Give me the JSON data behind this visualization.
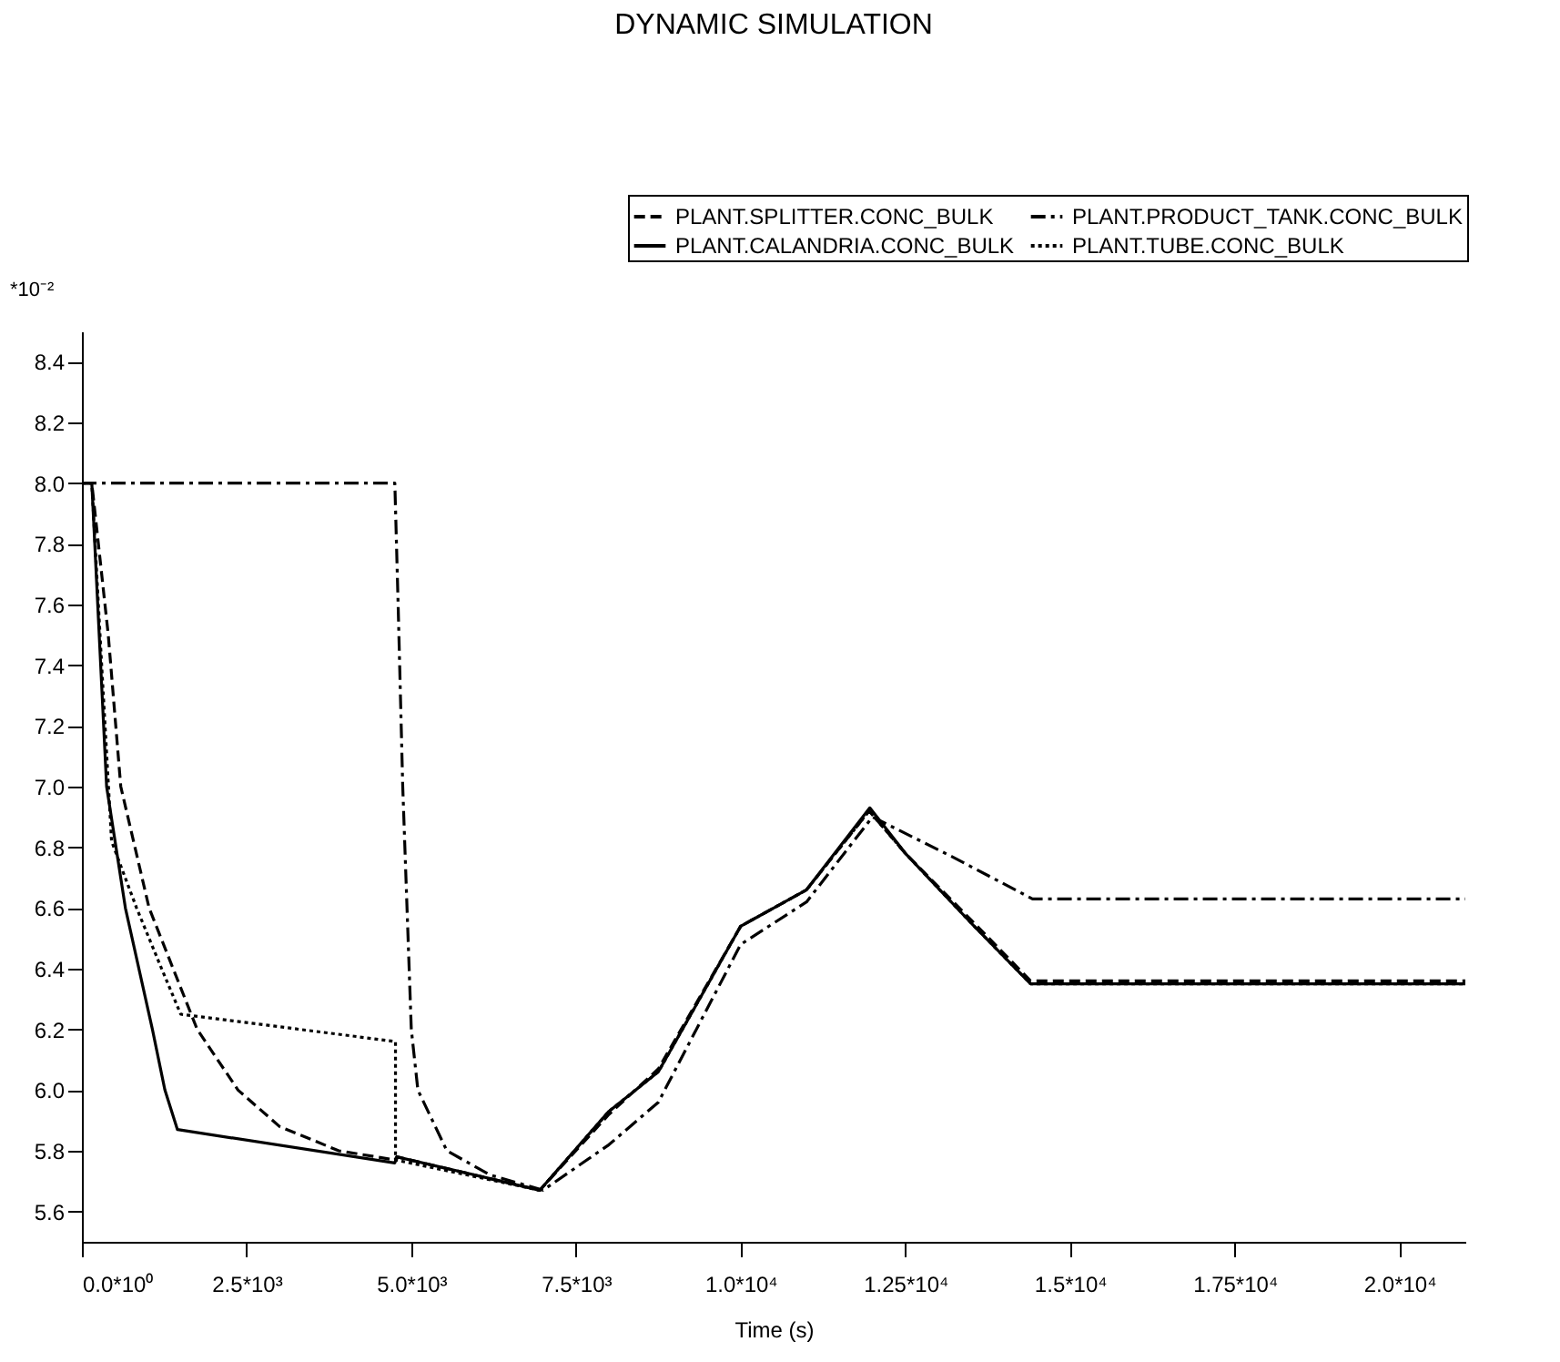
{
  "chart_data": {
    "type": "line",
    "title": "DYNAMIC SIMULATION",
    "xlabel": "Time (s)",
    "ylabel": "*10⁻²",
    "xlim": [
      0,
      21000
    ],
    "ylim": [
      5.5,
      8.5
    ],
    "xticks": [
      {
        "value": 0,
        "label": "0.0*10⁰"
      },
      {
        "value": 2500,
        "label": "2.5*10³"
      },
      {
        "value": 5000,
        "label": "5.0*10³"
      },
      {
        "value": 7500,
        "label": "7.5*10³"
      },
      {
        "value": 10000,
        "label": "1.0*10⁴"
      },
      {
        "value": 12500,
        "label": "1.25*10⁴"
      },
      {
        "value": 15000,
        "label": "1.5*10⁴"
      },
      {
        "value": 17500,
        "label": "1.75*10⁴"
      },
      {
        "value": 20000,
        "label": "2.0*10⁴"
      }
    ],
    "yticks": [
      {
        "value": 5.6,
        "label": "5.6"
      },
      {
        "value": 5.8,
        "label": "5.8"
      },
      {
        "value": 6.0,
        "label": "6.0"
      },
      {
        "value": 6.2,
        "label": "6.2"
      },
      {
        "value": 6.4,
        "label": "6.4"
      },
      {
        "value": 6.6,
        "label": "6.6"
      },
      {
        "value": 6.8,
        "label": "6.8"
      },
      {
        "value": 7.0,
        "label": "7.0"
      },
      {
        "value": 7.2,
        "label": "7.2"
      },
      {
        "value": 7.4,
        "label": "7.4"
      },
      {
        "value": 7.6,
        "label": "7.6"
      },
      {
        "value": 7.8,
        "label": "7.8"
      },
      {
        "value": 8.0,
        "label": "8.0"
      },
      {
        "value": 8.2,
        "label": "8.2"
      },
      {
        "value": 8.4,
        "label": "8.4"
      }
    ],
    "grid": false,
    "legend": "top right",
    "marker": "none",
    "series": [
      {
        "name": "PLANT.SPLITTER.CONC_BULK",
        "color": "#000000",
        "line_style": "dashed",
        "x": [
          0,
          150,
          400,
          590,
          1020,
          1750,
          2370,
          3000,
          3900,
          4750,
          4780,
          6950,
          8000,
          8750,
          10000,
          11000,
          11950,
          12500,
          13500,
          14400,
          21000
        ],
        "values": [
          8.0,
          8.0,
          7.5,
          7.0,
          6.6,
          6.2,
          6.0,
          5.88,
          5.8,
          5.77,
          5.78,
          5.67,
          5.92,
          6.07,
          6.54,
          6.66,
          6.92,
          6.78,
          6.56,
          6.36,
          6.36
        ]
      },
      {
        "name": "PLANT.PRODUCT_TANK.CONC_BULK",
        "color": "#000000",
        "line_style": "dashdot",
        "x": [
          0,
          4750,
          4800,
          4870,
          5000,
          5100,
          5540,
          6200,
          7000,
          8000,
          8750,
          10000,
          11000,
          12000,
          13200,
          14430,
          21000
        ],
        "values": [
          8.0,
          8.0,
          7.6,
          7.0,
          6.2,
          6.0,
          5.8,
          5.72,
          5.67,
          5.82,
          5.96,
          6.48,
          6.62,
          6.9,
          6.77,
          6.63,
          6.63
        ]
      },
      {
        "name": "PLANT.CALANDRIA.CONC_BULK",
        "color": "#000000",
        "line_style": "solid",
        "x": [
          0,
          150,
          375,
          660,
          1070,
          1260,
          1450,
          4750,
          4780,
          6950,
          8000,
          8750,
          10000,
          11000,
          11960,
          12500,
          13500,
          14400,
          21000
        ],
        "values": [
          8.0,
          8.0,
          7.0,
          6.6,
          6.2,
          6.0,
          5.87,
          5.76,
          5.78,
          5.67,
          5.93,
          6.06,
          6.54,
          6.66,
          6.93,
          6.78,
          6.55,
          6.35,
          6.35
        ]
      },
      {
        "name": "PLANT.TUBE.CONC_BULK",
        "color": "#000000",
        "line_style": "dotted",
        "x": [
          0,
          150,
          300,
          450,
          830,
          1210,
          1500,
          4760,
          4760,
          6950,
          8000,
          8750,
          10000,
          11000,
          11950,
          12500,
          13500,
          14400,
          21000
        ],
        "values": [
          8.0,
          8.0,
          7.4,
          6.82,
          6.6,
          6.4,
          6.25,
          6.16,
          5.77,
          5.67,
          5.93,
          6.06,
          6.54,
          6.66,
          6.92,
          6.78,
          6.55,
          6.35,
          6.35
        ]
      }
    ]
  }
}
